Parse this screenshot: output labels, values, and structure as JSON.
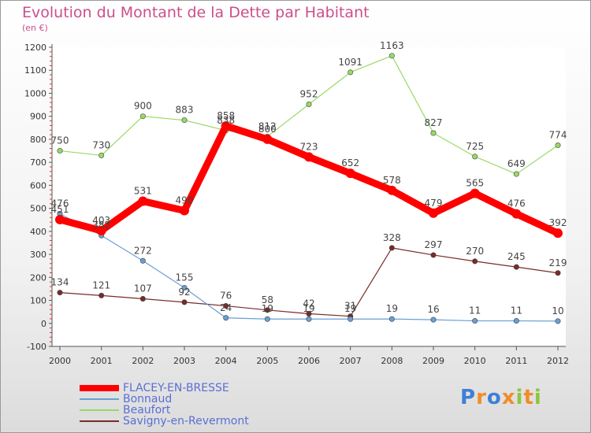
{
  "title": "Evolution du Montant de la Dette par Habitant",
  "unit": "(en €)",
  "brand": {
    "letters": [
      {
        "ch": "P",
        "color": "#3e7fd6"
      },
      {
        "ch": "r",
        "color": "#f28b2a"
      },
      {
        "ch": "o",
        "color": "#3e7fd6"
      },
      {
        "ch": "x",
        "color": "#f28b2a"
      },
      {
        "ch": "i",
        "color": "#8cc63f"
      },
      {
        "ch": "t",
        "color": "#f28b2a"
      },
      {
        "ch": "i",
        "color": "#8cc63f"
      }
    ]
  },
  "chart_data": {
    "type": "line",
    "title": "Evolution du Montant de la Dette par Habitant",
    "subtitle": "(en €)",
    "x": [
      "2000",
      "2001",
      "2002",
      "2003",
      "2004",
      "2005",
      "2006",
      "2007",
      "2008",
      "2009",
      "2010",
      "2011",
      "2012"
    ],
    "ylim": [
      -100,
      1200
    ],
    "yticks": [
      -100,
      0,
      100,
      200,
      300,
      400,
      500,
      600,
      700,
      800,
      900,
      1000,
      1100,
      1200
    ],
    "grid": false,
    "legend": "bottom-left",
    "series": [
      {
        "name": "FLACEY-EN-BRESSE",
        "color": "#ff0000",
        "values": [
          451,
          403,
          531,
          490,
          858,
          800,
          723,
          652,
          578,
          479,
          565,
          476,
          392
        ]
      },
      {
        "name": "Bonnaud",
        "color": "#6a9fd4",
        "values": [
          476,
          382,
          272,
          155,
          24,
          19,
          19,
          19,
          19,
          16,
          11,
          11,
          10
        ]
      },
      {
        "name": "Beaufort",
        "color": "#99d966",
        "values": [
          750,
          730,
          900,
          883,
          838,
          812,
          952,
          1091,
          1163,
          827,
          725,
          649,
          774
        ]
      },
      {
        "name": "Savigny-en-Revermont",
        "color": "#7a2a2a",
        "values": [
          134,
          121,
          107,
          92,
          76,
          58,
          42,
          31,
          328,
          297,
          270,
          245,
          219
        ]
      }
    ]
  }
}
